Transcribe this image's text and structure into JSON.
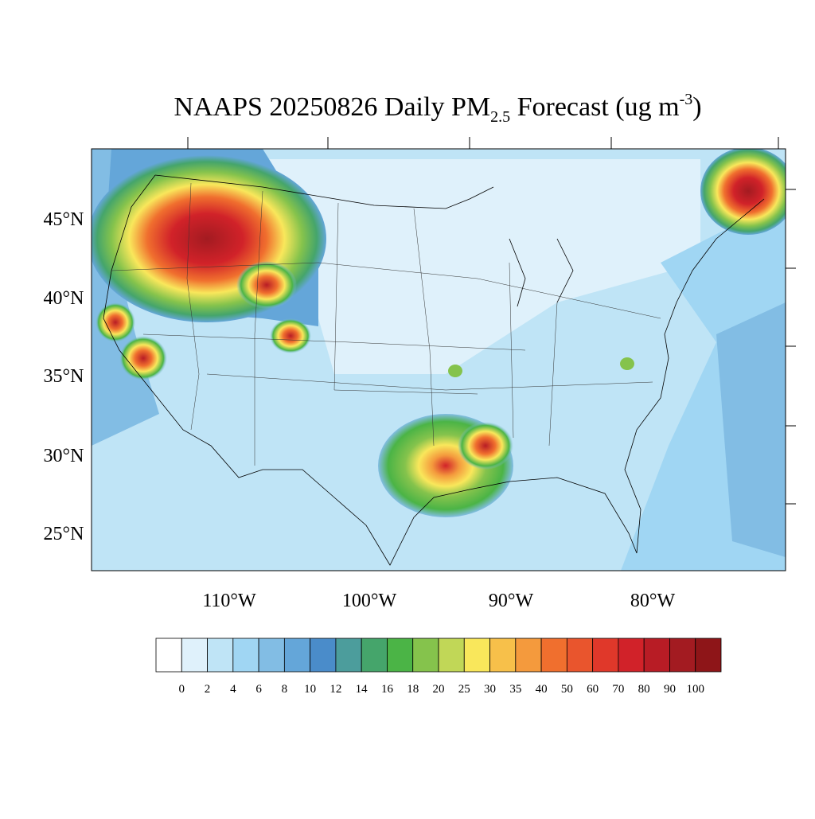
{
  "map": {
    "title": {
      "main": "NAAPS 20250826 Daily PM",
      "sub": "2.5",
      "rest": " Forecast (ug m",
      "sup": "-3",
      "end": ")"
    },
    "lat_labels": [
      "45°N",
      "40°N",
      "35°N",
      "30°N",
      "25°N"
    ],
    "lon_labels": [
      "110°W",
      "100°W",
      "90°W",
      "80°W"
    ],
    "colorbar": {
      "levels": [
        0,
        2,
        4,
        6,
        8,
        10,
        12,
        14,
        16,
        18,
        20,
        25,
        30,
        35,
        40,
        50,
        60,
        70,
        80,
        90,
        100
      ],
      "colors": [
        "#ffffff",
        "#dff1fb",
        "#bfe4f6",
        "#a0d6f3",
        "#82bde4",
        "#64a6d9",
        "#4a8cca",
        "#4c9d9c",
        "#45a56b",
        "#4bb446",
        "#85c34c",
        "#c1d757",
        "#f9e75b",
        "#f7c04a",
        "#f49a3d",
        "#f06f2e",
        "#e9552d",
        "#e0382a",
        "#d12229",
        "#b81c25",
        "#a31b21",
        "#8e1518"
      ]
    }
  }
}
